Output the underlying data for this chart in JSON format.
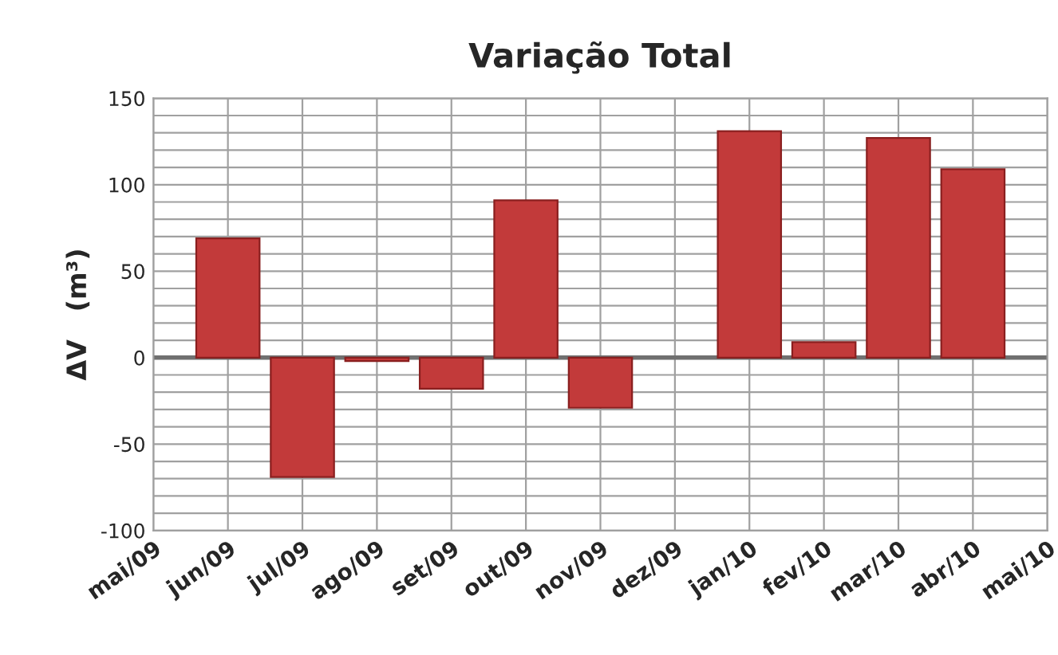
{
  "chart_data": {
    "type": "bar",
    "title": "Variação Total",
    "ylabel": "ΔV   (m³)",
    "categories": [
      "mai/09",
      "jun/09",
      "jul/09",
      "ago/09",
      "set/09",
      "out/09",
      "nov/09",
      "dez/09",
      "jan/10",
      "fev/10",
      "mar/10",
      "abr/10",
      "mai/10"
    ],
    "values": [
      null,
      69,
      -69,
      -2,
      -18,
      91,
      -29,
      null,
      131,
      9,
      127,
      109,
      null
    ],
    "color": "#c23a3a",
    "ylim": [
      -100,
      150
    ],
    "yticks": [
      -100,
      {
        "value": -90,
        "label": null
      },
      {
        "value": -80,
        "label": null
      },
      {
        "value": -70,
        "label": null
      },
      {
        "value": -60,
        "label": null
      },
      -50,
      {
        "value": -40,
        "label": null
      },
      {
        "value": -30,
        "label": null
      },
      {
        "value": -20,
        "label": null
      },
      {
        "value": -10,
        "label": null
      },
      0,
      {
        "value": 10,
        "label": null
      },
      {
        "value": 20,
        "label": null
      },
      {
        "value": 30,
        "label": null
      },
      {
        "value": 40,
        "label": null
      },
      50,
      {
        "value": 60,
        "label": null
      },
      {
        "value": 70,
        "label": null
      },
      {
        "value": 80,
        "label": null
      },
      {
        "value": 90,
        "label": null
      },
      100,
      {
        "value": 110,
        "label": null
      },
      {
        "value": 120,
        "label": null
      },
      {
        "value": 130,
        "label": null
      },
      {
        "value": 140,
        "label": null
      },
      150
    ],
    "grid": true
  }
}
